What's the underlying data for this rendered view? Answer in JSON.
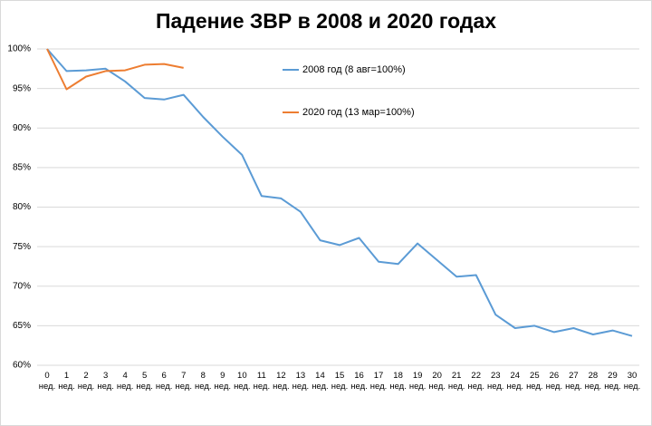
{
  "chart_data": {
    "type": "line",
    "title": "Падение ЗВР в 2008 и 2020 годах",
    "categories": [
      "0 нед.",
      "1 нед.",
      "2 нед.",
      "3 нед.",
      "4 нед.",
      "5 нед.",
      "6 нед.",
      "7 нед.",
      "8 нед.",
      "9 нед.",
      "10 нед.",
      "11 нед.",
      "12 нед.",
      "13 нед.",
      "14 нед.",
      "15 нед.",
      "16 нед.",
      "17 нед.",
      "18 нед.",
      "19 нед.",
      "20 нед.",
      "21 нед.",
      "22 нед.",
      "23 нед.",
      "24 нед.",
      "25 нед.",
      "26 нед.",
      "27 нед.",
      "28 нед.",
      "29 нед.",
      "30 нед."
    ],
    "series": [
      {
        "name": "2008 год (8 авг=100%)",
        "color": "#5b9bd5",
        "values": [
          100,
          97.2,
          97.3,
          97.5,
          95.9,
          93.8,
          93.6,
          94.2,
          91.4,
          88.9,
          86.6,
          81.4,
          81.1,
          79.4,
          75.8,
          75.2,
          76.1,
          73.1,
          72.8,
          75.4,
          73.3,
          71.2,
          71.4,
          66.4,
          64.7,
          65.0,
          64.2,
          64.7,
          63.9,
          64.4,
          63.7
        ]
      },
      {
        "name": "2020 год (13 мар=100%)",
        "color": "#ed7d31",
        "values": [
          100,
          94.9,
          96.5,
          97.2,
          97.3,
          98.0,
          98.1,
          97.6,
          null,
          null,
          null,
          null,
          null,
          null,
          null,
          null,
          null,
          null,
          null,
          null,
          null,
          null,
          null,
          null,
          null,
          null,
          null,
          null,
          null,
          null,
          null
        ]
      }
    ],
    "ylim": [
      60,
      100
    ],
    "yticks": [
      {
        "value": 60,
        "label": "60%"
      },
      {
        "value": 65,
        "label": "65%"
      },
      {
        "value": 70,
        "label": "70%"
      },
      {
        "value": 75,
        "label": "75%"
      },
      {
        "value": 80,
        "label": "80%"
      },
      {
        "value": 85,
        "label": "85%"
      },
      {
        "value": 90,
        "label": "90%"
      },
      {
        "value": 95,
        "label": "95%"
      },
      {
        "value": 100,
        "label": "100%"
      }
    ],
    "grid": true
  }
}
